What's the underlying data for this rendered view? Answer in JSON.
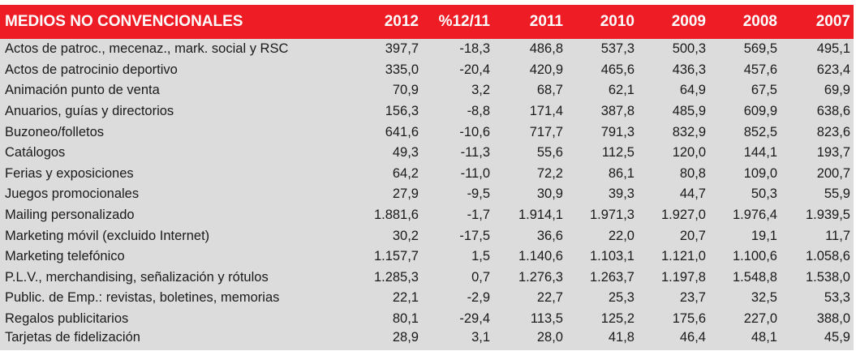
{
  "table": {
    "columns": [
      "MEDIOS NO CONVENCIONALES",
      "2012",
      "%12/11",
      "2011",
      "2010",
      "2009",
      "2008",
      "2007"
    ],
    "rows": [
      [
        "Actos de patroc., mecenaz., mark. social y RSC",
        "397,7",
        "-18,3",
        "486,8",
        "537,3",
        "500,3",
        "569,5",
        "495,1"
      ],
      [
        "Actos de patrocinio deportivo",
        "335,0",
        "-20,4",
        "420,9",
        "465,6",
        "436,3",
        "457,6",
        "623,4"
      ],
      [
        "Animación punto de venta",
        "70,9",
        "3,2",
        "68,7",
        "62,1",
        "64,9",
        "67,5",
        "69,9"
      ],
      [
        "Anuarios, guías y directorios",
        "156,3",
        "-8,8",
        "171,4",
        "387,8",
        "485,9",
        "609,9",
        "638,6"
      ],
      [
        "Buzoneo/folletos",
        "641,6",
        "-10,6",
        "717,7",
        "791,3",
        "832,9",
        "852,5",
        "823,6"
      ],
      [
        "Catálogos",
        "49,3",
        "-11,3",
        "55,6",
        "112,5",
        "120,0",
        "144,1",
        "193,7"
      ],
      [
        "Ferias y exposiciones",
        "64,2",
        "-11,0",
        "72,2",
        "86,1",
        "80,8",
        "109,0",
        "200,7"
      ],
      [
        "Juegos promocionales",
        "27,9",
        "-9,5",
        "30,9",
        "39,3",
        "44,7",
        "50,3",
        "55,9"
      ],
      [
        "Mailing personalizado",
        "1.881,6",
        "-1,7",
        "1.914,1",
        "1.971,3",
        "1.927,0",
        "1.976,4",
        "1.939,5"
      ],
      [
        "Marketing móvil (excluido Internet)",
        "30,2",
        "-17,5",
        "36,6",
        "22,0",
        "20,7",
        "19,1",
        "11,7"
      ],
      [
        "Marketing telefónico",
        "1.157,7",
        "1,5",
        "1.140,6",
        "1.103,1",
        "1.121,0",
        "1.100,6",
        "1.058,6"
      ],
      [
        "P.L.V., merchandising, señalización y rótulos",
        "1.285,3",
        "0,7",
        "1.276,3",
        "1.263,7",
        "1.197,8",
        "1.548,8",
        "1.538,0"
      ],
      [
        "Public. de Emp.: revistas, boletines, memorias",
        "22,1",
        "-2,9",
        "22,7",
        "25,3",
        "23,7",
        "32,5",
        "53,3"
      ],
      [
        "Regalos publicitarios",
        "80,1",
        "-29,4",
        "113,5",
        "125,2",
        "175,6",
        "227,0",
        "388,0"
      ],
      [
        "Tarjetas de fidelización",
        "28,9",
        "3,1",
        "28,0",
        "41,8",
        "46,4",
        "48,1",
        "45,9"
      ]
    ]
  },
  "colors": {
    "header_bg": "#ee1c25",
    "header_text": "#ffffff",
    "body_bg": "#dcdcdc",
    "body_text": "#1a1a1a"
  }
}
